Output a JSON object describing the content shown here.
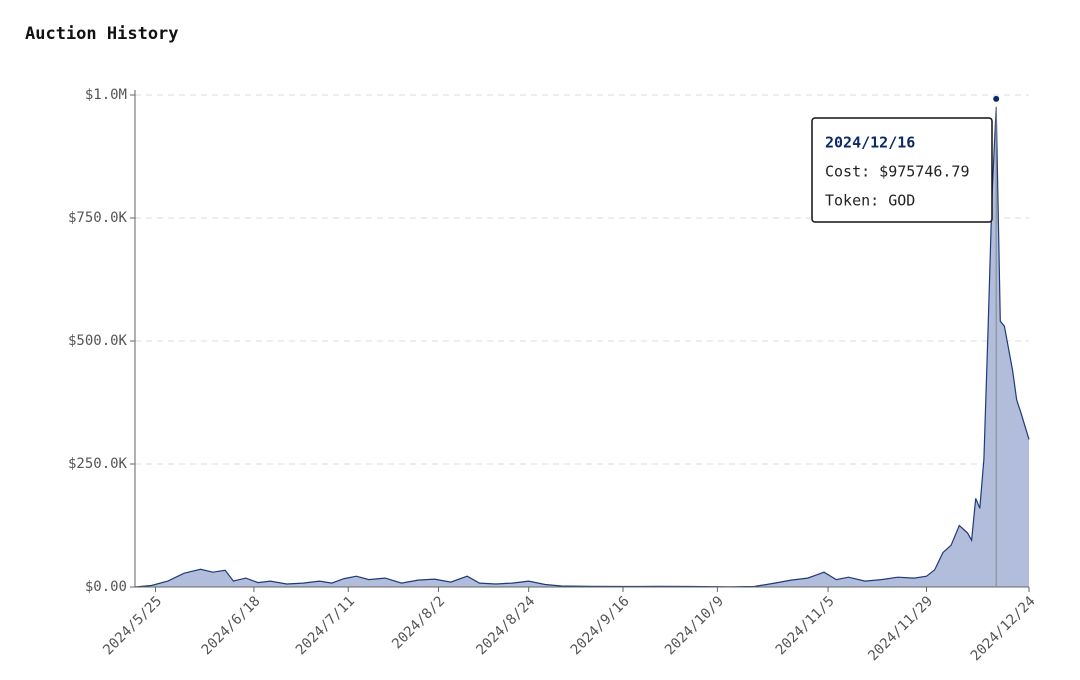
{
  "chart_data": {
    "type": "area",
    "title": "Auction History",
    "x": [
      "2024/5/20",
      "2024/5/24",
      "2024/5/28",
      "2024/6/1",
      "2024/6/5",
      "2024/6/8",
      "2024/6/11",
      "2024/6/13",
      "2024/6/16",
      "2024/6/19",
      "2024/6/22",
      "2024/6/26",
      "2024/6/30",
      "2024/7/4",
      "2024/7/7",
      "2024/7/10",
      "2024/7/13",
      "2024/7/16",
      "2024/7/20",
      "2024/7/24",
      "2024/7/28",
      "2024/8/1",
      "2024/8/5",
      "2024/8/9",
      "2024/8/12",
      "2024/8/16",
      "2024/8/20",
      "2024/8/24",
      "2024/8/28",
      "2024/9/1",
      "2024/9/8",
      "2024/9/16",
      "2024/9/25",
      "2024/10/3",
      "2024/10/12",
      "2024/10/18",
      "2024/10/23",
      "2024/10/27",
      "2024/10/31",
      "2024/11/2",
      "2024/11/4",
      "2024/11/7",
      "2024/11/10",
      "2024/11/14",
      "2024/11/18",
      "2024/11/22",
      "2024/11/26",
      "2024/11/29",
      "2024/12/1",
      "2024/12/3",
      "2024/12/5",
      "2024/12/7",
      "2024/12/9",
      "2024/12/10",
      "2024/12/11",
      "2024/12/12",
      "2024/12/13",
      "2024/12/14",
      "2024/12/15",
      "2024/12/16",
      "2024/12/17",
      "2024/12/18",
      "2024/12/20",
      "2024/12/21",
      "2024/12/22",
      "2024/12/24"
    ],
    "series": [
      {
        "name": "Cost",
        "color": "#1f3a7a",
        "fill": "#a9b6d6",
        "values": [
          0,
          3000,
          12000,
          28000,
          36000,
          30000,
          34000,
          12000,
          18000,
          9000,
          12000,
          6000,
          8000,
          12000,
          8000,
          17000,
          22000,
          15000,
          18000,
          8000,
          14000,
          16000,
          10000,
          22000,
          8000,
          6000,
          8000,
          12000,
          5000,
          2000,
          1500,
          1000,
          1500,
          1000,
          500,
          1000,
          8000,
          14000,
          18000,
          24000,
          30000,
          15000,
          20000,
          12000,
          15000,
          20000,
          18000,
          22000,
          35000,
          70000,
          85000,
          125000,
          110000,
          95000,
          180000,
          160000,
          260000,
          520000,
          800000,
          975746.79,
          540000,
          530000,
          440000,
          380000,
          355000,
          300000
        ]
      }
    ],
    "xlim": [
      "2024/5/20",
      "2024/12/24"
    ],
    "xticks": [
      "2024/5/25",
      "2024/6/18",
      "2024/7/11",
      "2024/8/2",
      "2024/8/24",
      "2024/9/16",
      "2024/10/9",
      "2024/11/5",
      "2024/11/29",
      "2024/12/24"
    ],
    "ylim": [
      0,
      1000000
    ],
    "yticks": [
      {
        "value": 0,
        "label": "$0.00"
      },
      {
        "value": 250000,
        "label": "$250.0K"
      },
      {
        "value": 500000,
        "label": "$500.0K"
      },
      {
        "value": 750000,
        "label": "$750.0K"
      },
      {
        "value": 1000000,
        "label": "$1.0M"
      }
    ],
    "grid": true,
    "tooltip": {
      "date": "2024/12/16",
      "cost": "Cost: $975746.79",
      "token": "Token: GOD"
    }
  }
}
